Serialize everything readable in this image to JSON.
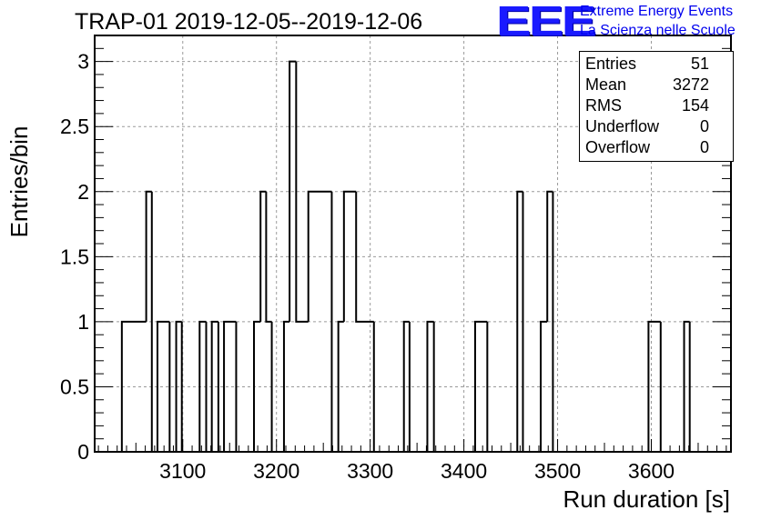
{
  "header": {
    "title": "TRAP-01 2019-12-05--2019-12-06",
    "logo_text": "EEE",
    "logo_line1": "Extreme Energy Events",
    "logo_line2": "La Scienza nelle Scuole"
  },
  "stats": {
    "rows": [
      {
        "label": "Entries",
        "value": "51"
      },
      {
        "label": "Mean",
        "value": "3272"
      },
      {
        "label": "RMS",
        "value": "154"
      },
      {
        "label": "Underflow",
        "value": "0"
      },
      {
        "label": "Overflow",
        "value": "0"
      }
    ]
  },
  "colors": {
    "logo": "#1a1aff",
    "grid": "#9a9a9a",
    "line": "#000000"
  },
  "chart_data": {
    "type": "bar",
    "style": "step-histogram",
    "xlabel": "Run duration [s]",
    "ylabel": "Entries/bin",
    "xlim": [
      3006,
      3685
    ],
    "ylim": [
      0,
      3.2
    ],
    "x_ticks": [
      3100,
      3200,
      3300,
      3400,
      3500,
      3600
    ],
    "y_ticks": [
      0,
      0.5,
      1,
      1.5,
      2,
      2.5,
      3
    ],
    "y_tick_labels": [
      "0",
      "0.5",
      "1",
      "1.5",
      "2",
      "2.5",
      "3"
    ],
    "grid": true,
    "bins": [
      {
        "x0": 3035,
        "x1": 3061,
        "y": 1
      },
      {
        "x0": 3061,
        "x1": 3067,
        "y": 2
      },
      {
        "x0": 3067,
        "x1": 3073,
        "y": 0
      },
      {
        "x0": 3073,
        "x1": 3086,
        "y": 1
      },
      {
        "x0": 3086,
        "x1": 3093,
        "y": 0
      },
      {
        "x0": 3093,
        "x1": 3099,
        "y": 1
      },
      {
        "x0": 3099,
        "x1": 3118,
        "y": 0
      },
      {
        "x0": 3118,
        "x1": 3125,
        "y": 1
      },
      {
        "x0": 3125,
        "x1": 3131,
        "y": 0
      },
      {
        "x0": 3131,
        "x1": 3138,
        "y": 1
      },
      {
        "x0": 3138,
        "x1": 3144,
        "y": 0
      },
      {
        "x0": 3144,
        "x1": 3157,
        "y": 1
      },
      {
        "x0": 3157,
        "x1": 3176,
        "y": 0
      },
      {
        "x0": 3176,
        "x1": 3183,
        "y": 1
      },
      {
        "x0": 3183,
        "x1": 3189,
        "y": 2
      },
      {
        "x0": 3189,
        "x1": 3195,
        "y": 1
      },
      {
        "x0": 3195,
        "x1": 3208,
        "y": 0
      },
      {
        "x0": 3208,
        "x1": 3214,
        "y": 1
      },
      {
        "x0": 3214,
        "x1": 3221,
        "y": 3
      },
      {
        "x0": 3221,
        "x1": 3234,
        "y": 1
      },
      {
        "x0": 3234,
        "x1": 3259,
        "y": 2
      },
      {
        "x0": 3259,
        "x1": 3266,
        "y": 0
      },
      {
        "x0": 3266,
        "x1": 3272,
        "y": 1
      },
      {
        "x0": 3272,
        "x1": 3285,
        "y": 2
      },
      {
        "x0": 3285,
        "x1": 3304,
        "y": 1
      },
      {
        "x0": 3304,
        "x1": 3336,
        "y": 0
      },
      {
        "x0": 3336,
        "x1": 3342,
        "y": 1
      },
      {
        "x0": 3342,
        "x1": 3361,
        "y": 0
      },
      {
        "x0": 3361,
        "x1": 3368,
        "y": 1
      },
      {
        "x0": 3368,
        "x1": 3412,
        "y": 0
      },
      {
        "x0": 3412,
        "x1": 3425,
        "y": 1
      },
      {
        "x0": 3425,
        "x1": 3457,
        "y": 0
      },
      {
        "x0": 3457,
        "x1": 3463,
        "y": 2
      },
      {
        "x0": 3463,
        "x1": 3482,
        "y": 0
      },
      {
        "x0": 3482,
        "x1": 3489,
        "y": 1
      },
      {
        "x0": 3489,
        "x1": 3495,
        "y": 2
      },
      {
        "x0": 3495,
        "x1": 3597,
        "y": 0
      },
      {
        "x0": 3597,
        "x1": 3610,
        "y": 1
      },
      {
        "x0": 3610,
        "x1": 3635,
        "y": 0
      },
      {
        "x0": 3635,
        "x1": 3641,
        "y": 1
      }
    ]
  }
}
